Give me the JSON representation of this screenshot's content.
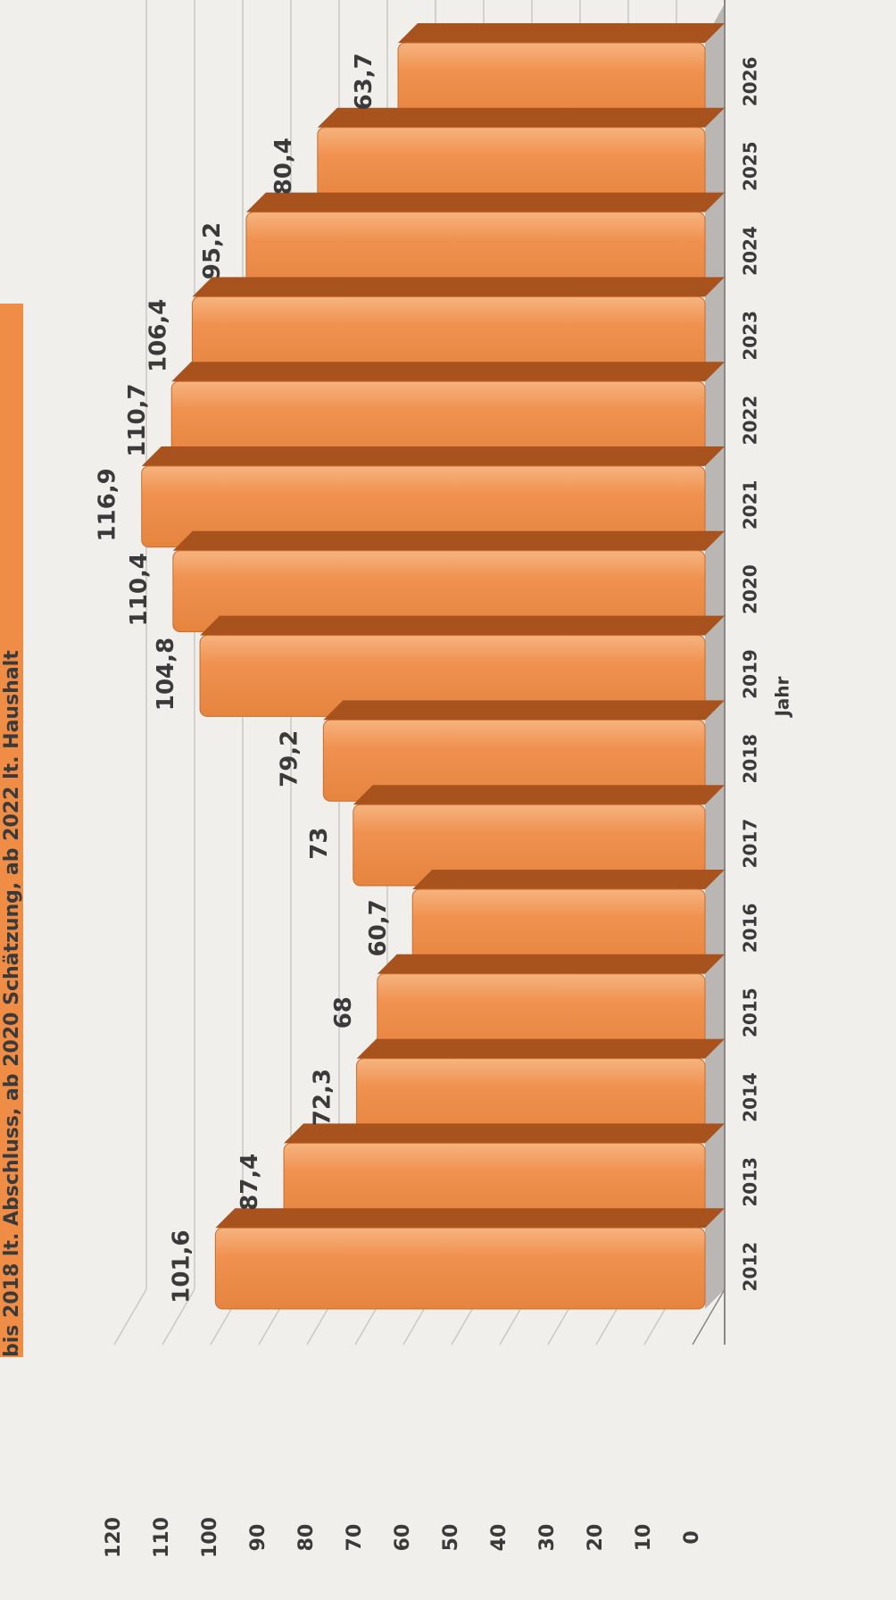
{
  "chart_data": {
    "type": "bar",
    "title": "bis 2018 lt. Abschluss, ab 2020 Schätzung, ab 2022 lt. Haushalt",
    "xlabel": "Jahr",
    "ylabel": "",
    "ylim": [
      0,
      120
    ],
    "yticks": [
      0,
      10,
      20,
      30,
      40,
      50,
      60,
      70,
      80,
      90,
      100,
      110,
      120
    ],
    "categories": [
      "2012",
      "2013",
      "2014",
      "2015",
      "2016",
      "2017",
      "2018",
      "2019",
      "2020",
      "2021",
      "2022",
      "2023",
      "2024",
      "2025",
      "2026"
    ],
    "values": [
      101.6,
      87.4,
      72.3,
      68,
      60.7,
      73,
      79.2,
      104.8,
      110.4,
      116.9,
      110.7,
      106.4,
      95.2,
      80.4,
      63.7
    ],
    "labels": [
      "101,6",
      "87,4",
      "72,3",
      "68",
      "60,7",
      "73",
      "79,2",
      "104,8",
      "110,4",
      "116,9",
      "110,7",
      "106,4",
      "95,2",
      "80,4",
      "63,7"
    ],
    "grid": true,
    "colors": {
      "bar": "#ef8d47",
      "bar_top": "#a8521d",
      "grid": "#c9c6c2",
      "title_bg": "#ef8d47"
    }
  }
}
